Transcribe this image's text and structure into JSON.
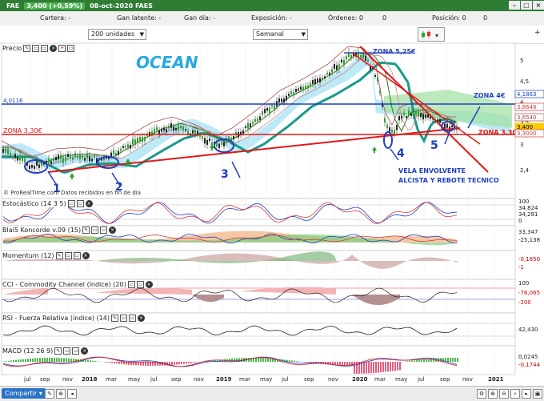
{
  "window": {
    "symbol": "FAE",
    "price_change": "3,400 (+0,59%)",
    "date_name": "08-oct-2020 FAES"
  },
  "positions": {
    "cartera": "Cartera: -",
    "ganlatente": "Gan latente: -",
    "gandia": "Gan día: -",
    "exposicion": "Exposición: -",
    "ordenes": "Órdenes: 0",
    "posicion": "Posición: 0",
    "num_a": "0",
    "num_b": "0"
  },
  "controls": {
    "units": "200 unidades",
    "period": "Semanal"
  },
  "chart": {
    "panel_title": "Precio",
    "name": "OCEAN",
    "credit": "© ProRealTime.com  Datos recibidos en fin de día",
    "annotations": {
      "zona525": "ZONA 5,25€",
      "zona4": "ZONA 4€",
      "zona330a": "ZONA 3,30€",
      "zona330b": "ZONA 3,30€",
      "vela": "VELA ENVOLVENTE",
      "alcista": "ALCISTA Y REBOTE TECNICO",
      "level_left": "4,0116",
      "n1": "1",
      "n2": "2",
      "n3": "3",
      "n4": "4",
      "n5": "5"
    },
    "y_ticks": [
      "5",
      "4,5",
      "4",
      "3,5",
      "3",
      "2,4"
    ],
    "price_tags": [
      {
        "label": "4,1863",
        "color": "#1f3fbf"
      },
      {
        "label": "3,8648",
        "color": "#d23b3b"
      },
      {
        "label": "3,6540",
        "color": "#b04848"
      },
      {
        "label": "3,400",
        "color": "#ffcc00"
      },
      {
        "label": "3,3000",
        "color": "#d23b3b"
      }
    ]
  },
  "indicators": [
    {
      "name": "Estocástico (14 3 5)",
      "ticks": [
        "100",
        "34,824",
        "34,281",
        "0"
      ]
    },
    {
      "name": "Blai5 Koncorde v.09 (15)",
      "ticks": [
        "33,347",
        "-25,138"
      ]
    },
    {
      "name": "Momentum (12)",
      "ticks": [
        "-0,1850",
        "-1"
      ]
    },
    {
      "name": "CCI - Commodity Channel (índice) (20)",
      "ticks": [
        "100",
        "-76,065",
        "-200"
      ]
    },
    {
      "name": "RSI - Fuerza Relativa (índice) (14)",
      "ticks": [
        "42,430"
      ]
    },
    {
      "name": "MACD (12 26 9)",
      "ticks": [
        "0,0245",
        "-0,1744"
      ]
    }
  ],
  "x_axis": [
    "jul",
    "sep",
    "nov",
    "2018",
    "mar",
    "may",
    "jul",
    "sep",
    "nov",
    "2019",
    "mar",
    "may",
    "jul",
    "sep",
    "nov",
    "2020",
    "mar",
    "may",
    "jul",
    "sep",
    "nov",
    "2021"
  ],
  "bottom": {
    "share": "Compartir"
  },
  "colors": {
    "titlebar": "#2f7d34",
    "up_candle": "#2aa52a",
    "down_candle": "#222222",
    "annot_blue": "#1f3fbf",
    "annot_red": "#e01818",
    "ocean": "#29a8e0"
  }
}
